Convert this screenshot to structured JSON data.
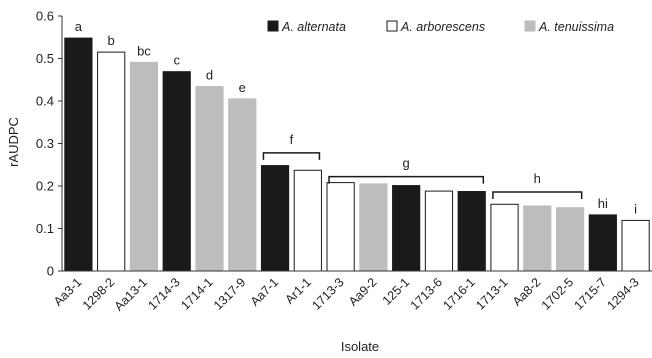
{
  "chart_data": {
    "type": "bar",
    "title": "",
    "xlabel": "Isolate",
    "ylabel": "rAUDPC",
    "ylim": [
      0,
      0.6
    ],
    "yticks": [
      "0",
      "0.1",
      "0.2",
      "0.3",
      "0.4",
      "0.5",
      "0.6"
    ],
    "grid": false,
    "legend_position": "top-right",
    "series_styles": [
      {
        "name": "A. alternata",
        "fill": "#1a1a1a",
        "stroke": "#1a1a1a"
      },
      {
        "name": "A. arborescens",
        "fill": "#ffffff",
        "stroke": "#1a1a1a"
      },
      {
        "name": "A. tenuissima",
        "fill": "#bdbdbd",
        "stroke": "#bdbdbd"
      }
    ],
    "categories": [
      "Aa3-1",
      "1298-2",
      "Aa13-1",
      "1714-3",
      "1714-1",
      "1317-9",
      "Aa7-1",
      "Ar1-1",
      "1713-3",
      "Aa9-2",
      "125-1",
      "1713-6",
      "1716-1",
      "1713-1",
      "Aa8-2",
      "1702-5",
      "1715-7",
      "1294-3"
    ],
    "values": [
      0.548,
      0.515,
      0.491,
      0.469,
      0.434,
      0.405,
      0.248,
      0.237,
      0.208,
      0.205,
      0.201,
      0.188,
      0.187,
      0.157,
      0.153,
      0.149,
      0.132,
      0.119
    ],
    "bar_species": [
      0,
      1,
      2,
      0,
      2,
      2,
      0,
      1,
      1,
      2,
      0,
      1,
      0,
      1,
      2,
      2,
      0,
      1
    ],
    "letters": [
      {
        "text": "a",
        "bar": 0
      },
      {
        "text": "b",
        "bar": 1
      },
      {
        "text": "bc",
        "bar": 2
      },
      {
        "text": "c",
        "bar": 3
      },
      {
        "text": "d",
        "bar": 4
      },
      {
        "text": "e",
        "bar": 5
      },
      {
        "text": "hi",
        "bar": 16
      },
      {
        "text": "i",
        "bar": 17
      }
    ],
    "groups": [
      {
        "text": "f",
        "from": 6,
        "to": 7,
        "level": 0.278
      },
      {
        "text": "g",
        "from": 8,
        "to": 12,
        "level": 0.222
      },
      {
        "text": "h",
        "from": 13,
        "to": 15,
        "level": 0.186
      }
    ]
  }
}
